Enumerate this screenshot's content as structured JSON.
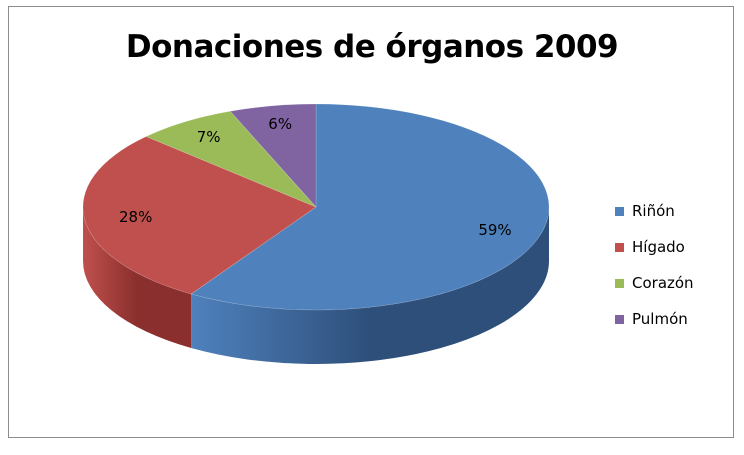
{
  "chart_data": {
    "type": "pie",
    "title": "Donaciones de órganos 2009",
    "categories": [
      "Riñón",
      "Hígado",
      "Corazón",
      "Pulmón"
    ],
    "values": [
      59,
      28,
      7,
      6
    ],
    "labels": [
      "59%",
      "28%",
      "7%",
      "6%"
    ],
    "colors": [
      "#4f81bd",
      "#c0504d",
      "#9bbb59",
      "#8064a2"
    ],
    "side_colors": [
      "#2e4f7a",
      "#8a2f2d",
      "#62792f",
      "#4e3b6b"
    ],
    "legend_position": "right",
    "style": "3d"
  }
}
